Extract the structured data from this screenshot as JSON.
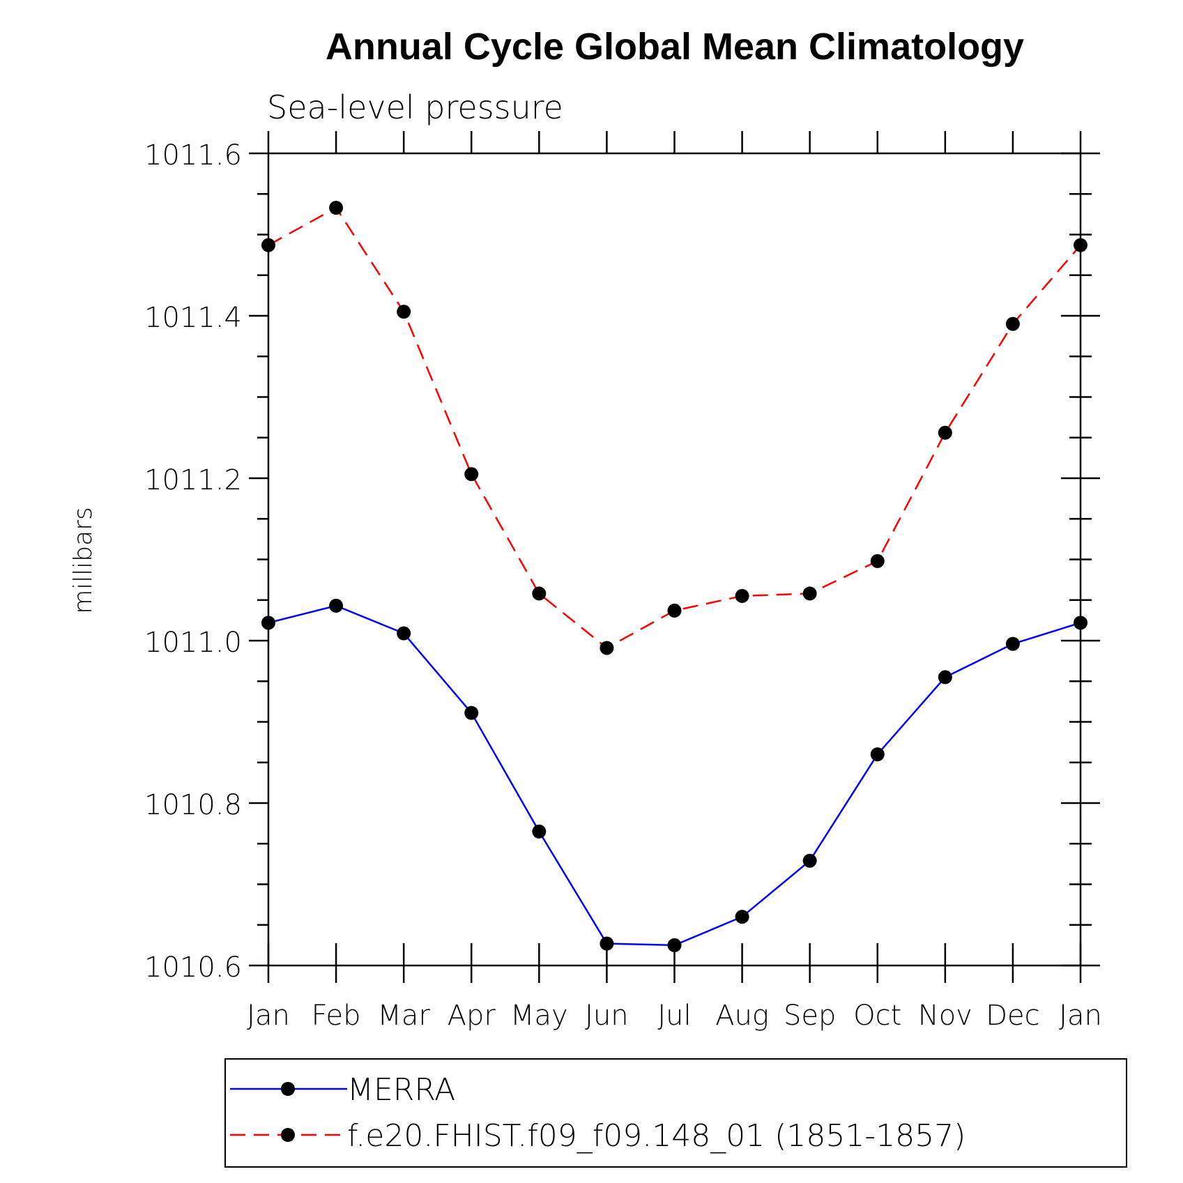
{
  "chart_data": {
    "type": "line",
    "title": "Annual Cycle Global Mean Climatology",
    "subtitle": "Sea-level pressure",
    "xlabel": "",
    "ylabel": "millibars",
    "categories": [
      "Jan",
      "Feb",
      "Mar",
      "Apr",
      "May",
      "Jun",
      "Jul",
      "Aug",
      "Sep",
      "Oct",
      "Nov",
      "Dec",
      "Jan"
    ],
    "ylim": [
      1010.6,
      1011.6
    ],
    "yticks": [
      "1010.6",
      "1010.8",
      "1011.0",
      "1011.2",
      "1011.4",
      "1011.6"
    ],
    "grid": false,
    "legend_position": "bottom",
    "series": [
      {
        "name": "MERRA",
        "color": "#0000ff",
        "style": "solid",
        "marker": "filled-circle",
        "values": [
          1011.022,
          1011.043,
          1011.009,
          1010.911,
          1010.765,
          1010.627,
          1010.625,
          1010.66,
          1010.729,
          1010.86,
          1010.955,
          1010.996,
          1011.022
        ]
      },
      {
        "name": "f.e20.FHIST.f09_f09.148_01 (1851-1857)",
        "color": "#ff0000",
        "style": "dashed",
        "marker": "filled-circle",
        "values": [
          1011.487,
          1011.533,
          1011.405,
          1011.205,
          1011.058,
          1010.991,
          1011.037,
          1011.055,
          1011.058,
          1011.098,
          1011.256,
          1011.39,
          1011.487
        ]
      }
    ]
  }
}
